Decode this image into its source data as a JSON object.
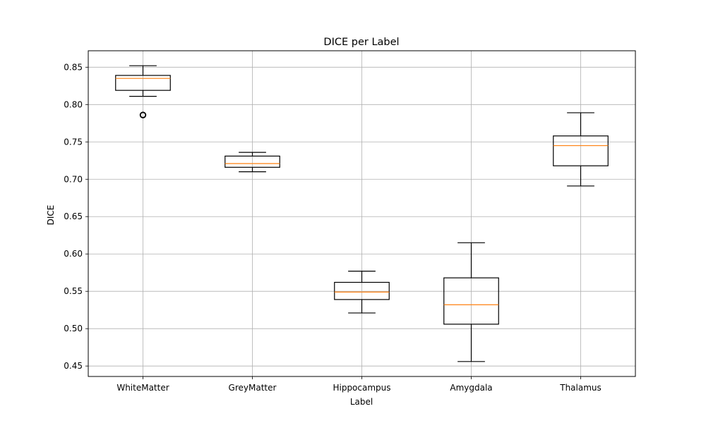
{
  "chart_data": {
    "type": "box",
    "title": "DICE per Label",
    "xlabel": "Label",
    "ylabel": "DICE",
    "ylim": [
      0.436,
      0.872
    ],
    "yticks": [
      "0.45",
      "0.50",
      "0.55",
      "0.60",
      "0.65",
      "0.70",
      "0.75",
      "0.80",
      "0.85"
    ],
    "grid": true,
    "categories": [
      "WhiteMatter",
      "GreyMatter",
      "Hippocampus",
      "Amygdala",
      "Thalamus"
    ],
    "boxes": [
      {
        "label": "WhiteMatter",
        "whislo": 0.811,
        "q1": 0.819,
        "med": 0.835,
        "q3": 0.839,
        "whishi": 0.852,
        "fliers": [
          0.786
        ]
      },
      {
        "label": "GreyMatter",
        "whislo": 0.71,
        "q1": 0.716,
        "med": 0.721,
        "q3": 0.731,
        "whishi": 0.736,
        "fliers": []
      },
      {
        "label": "Hippocampus",
        "whislo": 0.521,
        "q1": 0.539,
        "med": 0.549,
        "q3": 0.562,
        "whishi": 0.577,
        "fliers": []
      },
      {
        "label": "Amygdala",
        "whislo": 0.456,
        "q1": 0.506,
        "med": 0.532,
        "q3": 0.568,
        "whishi": 0.615,
        "fliers": []
      },
      {
        "label": "Thalamus",
        "whislo": 0.691,
        "q1": 0.718,
        "med": 0.745,
        "q3": 0.758,
        "whishi": 0.789,
        "fliers": []
      }
    ],
    "colors": {
      "box": "#000000",
      "median": "#ff7f0e",
      "grid": "#b0b0b0"
    }
  }
}
